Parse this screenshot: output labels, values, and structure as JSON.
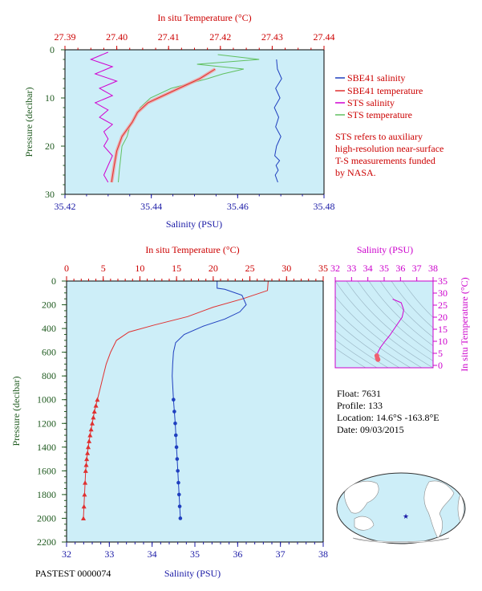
{
  "colors": {
    "panel_bg": "#cdeef8",
    "sbe41_salinity": "#1f3fbf",
    "sbe41_temperature": "#e03030",
    "sts_salinity": "#d000d0",
    "sts_temperature": "#60c060",
    "sts_temperature_thick": "#f0a0a0",
    "temp_axis": "#cc0000",
    "sal_axis": "#1a1aa6",
    "pressure_axis": "#1f5a1f",
    "ts_axis": "#cc00cc"
  },
  "legend": {
    "items": [
      {
        "label": "SBE41 salinity",
        "color": "#1f3fbf"
      },
      {
        "label": "SBE41 temperature",
        "color": "#e03030"
      },
      {
        "label": "STS salinity",
        "color": "#d000d0"
      },
      {
        "label": "STS temperature",
        "color": "#60c060"
      }
    ],
    "note": [
      "STS refers to auxiliary",
      "high-resolution near-surface",
      "T-S measurements funded",
      "by NASA."
    ]
  },
  "info": {
    "float": "Float:  7631",
    "profile": "Profile:  133",
    "location": "Location:  14.6°S  -163.8°E",
    "date": "Date:  09/03/2015"
  },
  "footer_tiny": "PASTEST 0000074",
  "chart_data": [
    {
      "type": "line",
      "panel": "near-surface",
      "top_axis_label": "In situ Temperature (°C)",
      "bottom_axis_label": "Salinity (PSU)",
      "left_axis_label": "Pressure (decibar)",
      "top_ticks": [
        "27.39",
        "27.40",
        "27.41",
        "27.42",
        "27.43",
        "27.44"
      ],
      "bottom_ticks": [
        "35.42",
        "35.44",
        "35.46",
        "35.48"
      ],
      "left_ticks": [
        "0",
        "10",
        "20",
        "30"
      ],
      "temp_range": [
        27.39,
        27.44
      ],
      "sal_range": [
        35.42,
        35.48
      ],
      "pressure_range": [
        0,
        30
      ],
      "series": [
        {
          "name": "SBE41 salinity",
          "axis": "salinity",
          "x": [
            35.469,
            35.4692,
            35.4702,
            35.4688,
            35.4698,
            35.4685,
            35.4695,
            35.4688,
            35.47,
            35.469,
            35.4686,
            35.4697,
            35.4689,
            35.4694,
            35.4687,
            35.4693
          ],
          "y": [
            2,
            4,
            6,
            8,
            10,
            12,
            14,
            16,
            18,
            20,
            22,
            23,
            24,
            25,
            26,
            27.5
          ]
        },
        {
          "name": "STS salinity",
          "axis": "salinity",
          "x": [
            35.43,
            35.426,
            35.431,
            35.427,
            35.432,
            35.428,
            35.431,
            35.427,
            35.43,
            35.428,
            35.431,
            35.429,
            35.43,
            35.429,
            35.431,
            35.43,
            35.429,
            35.43
          ],
          "y": [
            0.5,
            2,
            3.5,
            5,
            6.5,
            8,
            9.5,
            11,
            12.5,
            14,
            15.5,
            17,
            18.5,
            20,
            22,
            24,
            26,
            27.5
          ]
        },
        {
          "name": "STS temperature",
          "axis": "temperature",
          "x": [
            27.4195,
            27.4275,
            27.4155,
            27.4245,
            27.4205,
            27.4175,
            27.4105,
            27.4065,
            27.4045,
            27.4035,
            27.4025,
            27.402,
            27.401,
            27.4008,
            27.4005,
            27.4003
          ],
          "y": [
            1,
            2,
            3,
            4,
            5,
            6,
            8,
            10,
            12,
            14,
            16,
            18,
            20,
            22,
            25,
            27.5
          ]
        },
        {
          "name": "SBE41 temperature",
          "axis": "temperature",
          "x": [
            27.419,
            27.416,
            27.412,
            27.408,
            27.406,
            27.404,
            27.403,
            27.401,
            27.4,
            27.3995,
            27.399
          ],
          "y": [
            4,
            6,
            8,
            10,
            11,
            13,
            15,
            18,
            21,
            24,
            27.5
          ]
        }
      ]
    },
    {
      "type": "line",
      "panel": "full-profile",
      "top_axis_label": "In situ Temperature (°C)",
      "bottom_axis_label": "Salinity (PSU)",
      "left_axis_label": "Pressure (decibar)",
      "top_ticks": [
        "0",
        "5",
        "10",
        "15",
        "20",
        "25",
        "30",
        "35"
      ],
      "bottom_ticks": [
        "32",
        "33",
        "34",
        "35",
        "36",
        "37",
        "38"
      ],
      "left_ticks": [
        "0",
        "200",
        "400",
        "600",
        "800",
        "1000",
        "1200",
        "1400",
        "1600",
        "1800",
        "2000",
        "2200"
      ],
      "temp_range": [
        0,
        35
      ],
      "sal_range": [
        32,
        38
      ],
      "pressure_range": [
        0,
        2200
      ],
      "series": [
        {
          "name": "Temperature",
          "axis": "temperature",
          "x": [
            27.5,
            27.4,
            24.0,
            20.0,
            16.5,
            12.0,
            8.5,
            6.8,
            6.0,
            5.4,
            5.0,
            4.6,
            4.2,
            3.8,
            3.5,
            3.2,
            2.95,
            2.75,
            2.6,
            2.45,
            2.3
          ],
          "y": [
            0,
            80,
            150,
            220,
            300,
            370,
            430,
            500,
            600,
            700,
            800,
            900,
            1000,
            1100,
            1200,
            1300,
            1400,
            1500,
            1600,
            1800,
            2000
          ]
        },
        {
          "name": "Salinity",
          "axis": "salinity",
          "x": [
            35.52,
            35.52,
            35.7,
            36.1,
            36.2,
            36.05,
            35.7,
            35.2,
            34.75,
            34.55,
            34.5,
            34.48,
            34.47,
            34.5,
            34.54,
            34.57,
            34.6,
            34.63,
            34.66
          ],
          "y": [
            0,
            60,
            70,
            120,
            200,
            260,
            320,
            380,
            450,
            520,
            600,
            700,
            800,
            1000,
            1200,
            1400,
            1600,
            1800,
            2000
          ]
        }
      ]
    },
    {
      "type": "line",
      "panel": "t-s-diagram",
      "top_axis_label": "Salinity (PSU)",
      "right_axis_label": "In situ Temperature (°C)",
      "top_ticks": [
        "32",
        "33",
        "34",
        "35",
        "36",
        "37",
        "38"
      ],
      "right_ticks": [
        "0",
        "5",
        "10",
        "15",
        "20",
        "25",
        "30",
        "35"
      ],
      "sal_range": [
        32,
        38
      ],
      "temp_range": [
        -1,
        35
      ],
      "series": [
        {
          "name": "T-S",
          "x": [
            34.62,
            34.58,
            34.55,
            34.62,
            34.78,
            35.05,
            35.35,
            35.6,
            35.85,
            36.1,
            36.2,
            36.05,
            35.52
          ],
          "y": [
            2.4,
            3.0,
            4.0,
            5.5,
            7.5,
            10.0,
            12.5,
            15.0,
            17.5,
            20.0,
            23.0,
            26.0,
            27.5
          ]
        }
      ]
    }
  ]
}
